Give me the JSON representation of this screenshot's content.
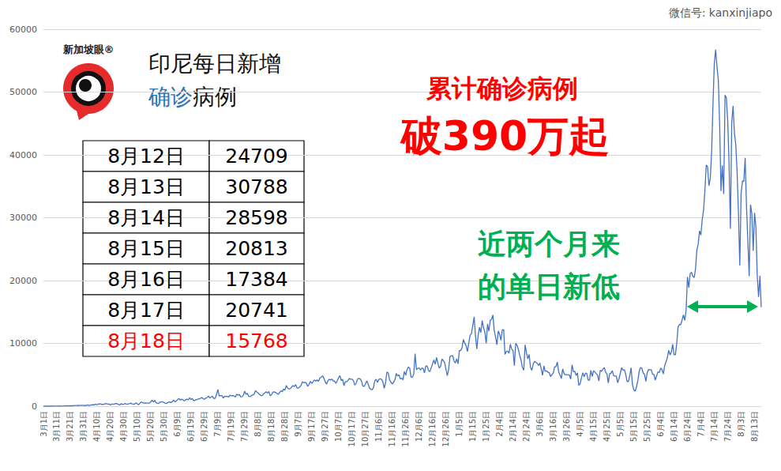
{
  "chart_data": {
    "type": "line",
    "title": {
      "line1": "印尼每日新增",
      "line2": [
        "确诊",
        "病例"
      ]
    },
    "annotations": {
      "cumulative": [
        "累计确诊病例",
        "破390万起"
      ],
      "low": [
        "近两个月来",
        "的单日新低"
      ],
      "logo": "新加坡眼®",
      "watermark": "微信号: kanxinjiapo"
    },
    "table": {
      "rows": [
        {
          "date": "8月12日",
          "value": 24709
        },
        {
          "date": "8月13日",
          "value": 30788
        },
        {
          "date": "8月14日",
          "value": 28598
        },
        {
          "date": "8月15日",
          "value": 20813
        },
        {
          "date": "8月16日",
          "value": 17384
        },
        {
          "date": "8月17日",
          "value": 20741
        },
        {
          "date": "8月18日",
          "value": 15768,
          "color": "#ff0000"
        }
      ]
    },
    "color": "#4472c4",
    "grid": true,
    "ylim": [
      0,
      60000
    ],
    "yticks": [
      0,
      10000,
      20000,
      30000,
      40000,
      50000,
      60000
    ],
    "categories": [
      "3月1日",
      null,
      null,
      null,
      null,
      null,
      null,
      null,
      null,
      null,
      "3月11日",
      null,
      null,
      null,
      null,
      null,
      null,
      null,
      null,
      null,
      "3月21日",
      null,
      null,
      null,
      null,
      null,
      null,
      null,
      null,
      null,
      "3月31日",
      null,
      null,
      null,
      null,
      null,
      null,
      null,
      null,
      null,
      "4月10日",
      null,
      null,
      null,
      null,
      null,
      null,
      null,
      null,
      null,
      "4月20日",
      null,
      null,
      null,
      null,
      null,
      null,
      null,
      null,
      null,
      "4月30日",
      null,
      null,
      null,
      null,
      null,
      null,
      null,
      null,
      null,
      "5月10日",
      null,
      null,
      null,
      null,
      null,
      null,
      null,
      null,
      null,
      "5月20日",
      null,
      null,
      null,
      null,
      null,
      null,
      null,
      null,
      null,
      "5月30日",
      null,
      null,
      null,
      null,
      null,
      null,
      null,
      null,
      null,
      "6月9日",
      null,
      null,
      null,
      null,
      null,
      null,
      null,
      null,
      null,
      "6月19日",
      null,
      null,
      null,
      null,
      null,
      null,
      null,
      null,
      null,
      "6月29日",
      null,
      null,
      null,
      null,
      null,
      null,
      null,
      null,
      null,
      "7月9日",
      null,
      null,
      null,
      null,
      null,
      null,
      null,
      null,
      null,
      "7月19日",
      null,
      null,
      null,
      null,
      null,
      null,
      null,
      null,
      null,
      "7月29日",
      null,
      null,
      null,
      null,
      null,
      null,
      null,
      null,
      null,
      "8月8日",
      null,
      null,
      null,
      null,
      null,
      null,
      null,
      null,
      null,
      "8月18日",
      null,
      null,
      null,
      null,
      null,
      null,
      null,
      null,
      null,
      "8月28日",
      null,
      null,
      null,
      null,
      null,
      null,
      null,
      null,
      null,
      "9月7日",
      null,
      null,
      null,
      null,
      null,
      null,
      null,
      null,
      null,
      "9月17日",
      null,
      null,
      null,
      null,
      null,
      null,
      null,
      null,
      null,
      "9月27日",
      null,
      null,
      null,
      null,
      null,
      null,
      null,
      null,
      null,
      "10月7日",
      null,
      null,
      null,
      null,
      null,
      null,
      null,
      null,
      null,
      "10月17日",
      null,
      null,
      null,
      null,
      null,
      null,
      null,
      null,
      null,
      "10月27日",
      null,
      null,
      null,
      null,
      null,
      null,
      null,
      null,
      null,
      "11月6日",
      null,
      null,
      null,
      null,
      null,
      null,
      null,
      null,
      null,
      "11月16日",
      null,
      null,
      null,
      null,
      null,
      null,
      null,
      null,
      null,
      "11月26日",
      null,
      null,
      null,
      null,
      null,
      null,
      null,
      null,
      null,
      "12月6日",
      null,
      null,
      null,
      null,
      null,
      null,
      null,
      null,
      null,
      "12月16日",
      null,
      null,
      null,
      null,
      null,
      null,
      null,
      null,
      null,
      "12月26日",
      null,
      null,
      null,
      null,
      null,
      null,
      null,
      null,
      null,
      "1月5日",
      null,
      null,
      null,
      null,
      null,
      null,
      null,
      null,
      null,
      "1月15日",
      null,
      null,
      null,
      null,
      null,
      null,
      null,
      null,
      null,
      "1月25日",
      null,
      null,
      null,
      null,
      null,
      null,
      null,
      null,
      null,
      "2月4日",
      null,
      null,
      null,
      null,
      null,
      null,
      null,
      null,
      null,
      "2月14日",
      null,
      null,
      null,
      null,
      null,
      null,
      null,
      null,
      null,
      "2月24日",
      null,
      null,
      null,
      null,
      null,
      null,
      null,
      null,
      null,
      "3月6日",
      null,
      null,
      null,
      null,
      null,
      null,
      null,
      null,
      null,
      "3月16日",
      null,
      null,
      null,
      null,
      null,
      null,
      null,
      null,
      null,
      "3月26日",
      null,
      null,
      null,
      null,
      null,
      null,
      null,
      null,
      null,
      "4月5日",
      null,
      null,
      null,
      null,
      null,
      null,
      null,
      null,
      null,
      "4月15日",
      null,
      null,
      null,
      null,
      null,
      null,
      null,
      null,
      null,
      "4月25日",
      null,
      null,
      null,
      null,
      null,
      null,
      null,
      null,
      null,
      "5月5日",
      null,
      null,
      null,
      null,
      null,
      null,
      null,
      null,
      null,
      "5月15日",
      null,
      null,
      null,
      null,
      null,
      null,
      null,
      null,
      null,
      "5月25日",
      null,
      null,
      null,
      null,
      null,
      null,
      null,
      null,
      null,
      "6月4日",
      null,
      null,
      null,
      null,
      null,
      null,
      null,
      null,
      null,
      "6月14日",
      null,
      null,
      null,
      null,
      null,
      null,
      null,
      null,
      null,
      "6月24日",
      null,
      null,
      null,
      null,
      null,
      null,
      null,
      null,
      null,
      "7月4日",
      null,
      null,
      null,
      null,
      null,
      null,
      null,
      null,
      null,
      "7月14日",
      null,
      null,
      null,
      null,
      null,
      null,
      null,
      null,
      null,
      "7月24日",
      null,
      null,
      null,
      null,
      null,
      null,
      null,
      null,
      null,
      "8月3日",
      null,
      null,
      null,
      null,
      null,
      null,
      null,
      null,
      null,
      "8月13日",
      null,
      null,
      null,
      null,
      null
    ],
    "values": [
      0,
      2,
      0,
      0,
      0,
      2,
      0,
      0,
      13,
      8,
      7,
      0,
      35,
      27,
      21,
      17,
      38,
      55,
      82,
      60,
      81,
      64,
      65,
      107,
      104,
      103,
      153,
      109,
      130,
      129,
      114,
      149,
      113,
      196,
      106,
      181,
      218,
      247,
      218,
      337,
      219,
      330,
      399,
      316,
      282,
      297,
      380,
      407,
      325,
      327,
      185,
      375,
      283,
      357,
      436,
      396,
      275,
      214,
      415,
      260,
      347,
      433,
      292,
      349,
      395,
      484,
      367,
      338,
      336,
      533,
      387,
      233,
      484,
      689,
      568,
      490,
      529,
      489,
      496,
      486,
      693,
      973,
      634,
      949,
      526,
      479,
      415,
      686,
      687,
      700,
      557,
      467,
      467,
      609,
      684,
      585,
      703,
      993,
      672,
      847,
      1043,
      1241,
      979,
      1111,
      1014,
      857,
      1017,
      1106,
      1031,
      1331,
      1041,
      1226,
      862,
      954,
      1051,
      1113,
      1178,
      1240,
      1385,
      1198,
      1082,
      1293,
      1385,
      1624,
      1301,
      1447,
      1607,
      1209,
      1268,
      1853,
      2657,
      1611,
      1671,
      1681,
      1282,
      1591,
      1522,
      1574,
      1462,
      1752,
      1639,
      1693,
      1655,
      1436,
      1906,
      1761,
      1868,
      1492,
      1525,
      1748,
      2381,
      1904,
      2040,
      1560,
      1519,
      1679,
      1815,
      1882,
      2473,
      2277,
      2116,
      1893,
      1687,
      1693,
      1942,
      2098,
      2307,
      2081,
      2345,
      1673,
      1821,
      2254,
      2266,
      2197,
      2037,
      1877,
      2146,
      2447,
      2306,
      2719,
      2564,
      3308,
      2858,
      2743,
      2775,
      3075,
      3269,
      3128,
      3444,
      2881,
      2880,
      3046,
      3307,
      3861,
      3737,
      3806,
      3636,
      3141,
      3507,
      3963,
      3635,
      3891,
      4168,
      3989,
      4176,
      3963,
      4465,
      4634,
      4823,
      4494,
      3874,
      3509,
      4002,
      4284,
      4174,
      4317,
      4007,
      3992,
      3622,
      4056,
      4538,
      4850,
      4094,
      4294,
      3267,
      3906,
      3906,
      4105,
      4411,
      4301,
      4301,
      4105,
      3373,
      3602,
      4267,
      4432,
      4369,
      4070,
      3222,
      3143,
      3520,
      4029,
      3565,
      2897,
      2696,
      2618,
      2973,
      4065,
      4268,
      3778,
      4262,
      4370,
      4262,
      3880,
      2853,
      3770,
      5444,
      5272,
      4173,
      3807,
      3535,
      3807,
      4209,
      5221,
      4798,
      4998,
      4360,
      4442,
      4192,
      5534,
      4917,
      5828,
      6267,
      6022,
      4617,
      4617,
      5092,
      8369,
      5803,
      6027,
      6089,
      5754,
      6058,
      6033,
      5292,
      6388,
      6388,
      5681,
      5489,
      6120,
      6725,
      7354,
      6689,
      7751,
      6848,
      6059,
      6347,
      7514,
      7259,
      6981,
      5854,
      4854,
      5854,
      7903,
      8002,
      8072,
      7203,
      6877,
      7559,
      6753,
      8854,
      8854,
      9321,
      10617,
      10046,
      9640,
      8692,
      10047,
      11278,
      11557,
      12818,
      14224,
      11287,
      9086,
      11287,
      12568,
      11703,
      13632,
      12482,
      11788,
      9994,
      13094,
      11948,
      13695,
      13802,
      14518,
      12001,
      10994,
      9775,
      11984,
      11434,
      10485,
      12156,
      12185,
      8242,
      8700,
      8776,
      8435,
      9869,
      9070,
      8844,
      6462,
      10029,
      9687,
      9039,
      8054,
      7300,
      6156,
      5732,
      9775,
      8493,
      7533,
      8232,
      6208,
      5712,
      6680,
      7148,
      6971,
      6825,
      6486,
      6892,
      5928,
      4920,
      6412,
      5534,
      5633,
      5414,
      5320,
      4714,
      5045,
      5268,
      6279,
      6287,
      7036,
      5457,
      4982,
      4396,
      5937,
      5227,
      4985,
      5016,
      5016,
      4964,
      4306,
      6596,
      5488,
      5563,
      4889,
      5294,
      3315,
      3574,
      4549,
      5325,
      4695,
      5282,
      5190,
      4123,
      4127,
      5702,
      4725,
      5656,
      5421,
      5173,
      4952,
      4024,
      5720,
      5549,
      5912,
      6128,
      5436,
      5136,
      3700,
      5185,
      5241,
      5654,
      4849,
      4801,
      4796,
      3731,
      4369,
      5285,
      6130,
      5720,
      5816,
      5053,
      3922,
      3922,
      4891,
      6131,
      3448,
      2633,
      2385,
      3080,
      4040,
      5530,
      6160,
      6040,
      5280,
      5060,
      3950,
      5320,
      5840,
      5800,
      5800,
      5090,
      5060,
      4150,
      4820,
      5460,
      5350,
      6060,
      5840,
      5140,
      6440,
      7050,
      7720,
      8900,
      8160,
      8640,
      9860,
      8190,
      8190,
      9940,
      12620,
      12990,
      12990,
      13740,
      14530,
      13670,
      15310,
      20570,
      18870,
      21090,
      21340,
      20690,
      20460,
      21810,
      24830,
      25830,
      27910,
      27230,
      29740,
      31190,
      34380,
      38390,
      38120,
      35090,
      36200,
      40430,
      47900,
      54520,
      56760,
      54000,
      51950,
      44720,
      34260,
      38330,
      33770,
      49510,
      49070,
      45420,
      38680,
      28230,
      45200,
      47790,
      43480,
      41650,
      37280,
      30740,
      22400,
      33900,
      35870,
      35760,
      39530,
      31750,
      26420,
      20710,
      32080,
      30630,
      24709,
      30788,
      28598,
      20813,
      17384,
      20741,
      15768
    ]
  }
}
